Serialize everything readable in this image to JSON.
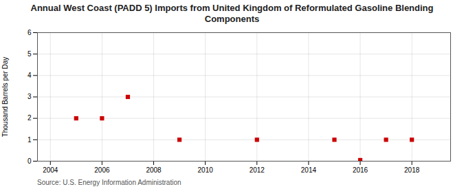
{
  "chart_data": {
    "type": "scatter",
    "title": "Annual West Coast (PADD 5) Imports from United Kingdom of Reformulated Gasoline Blending Components",
    "ylabel": "Thousand Barrels per Day",
    "source": "Source: U.S. Energy Information Administration",
    "x": [
      2005,
      2006,
      2007,
      2009,
      2012,
      2015,
      2016,
      2017,
      2018
    ],
    "values": [
      2,
      2,
      3,
      1,
      1,
      1,
      0.05,
      1,
      1
    ],
    "color": "#cc0000",
    "marker": "square",
    "xlim": [
      2003.5,
      2019.5
    ],
    "xticks": [
      2004,
      2006,
      2008,
      2010,
      2012,
      2014,
      2016,
      2018
    ],
    "ylim": [
      0,
      6
    ],
    "yticks": [
      0,
      1,
      2,
      3,
      4,
      5,
      6
    ],
    "grid": true
  }
}
